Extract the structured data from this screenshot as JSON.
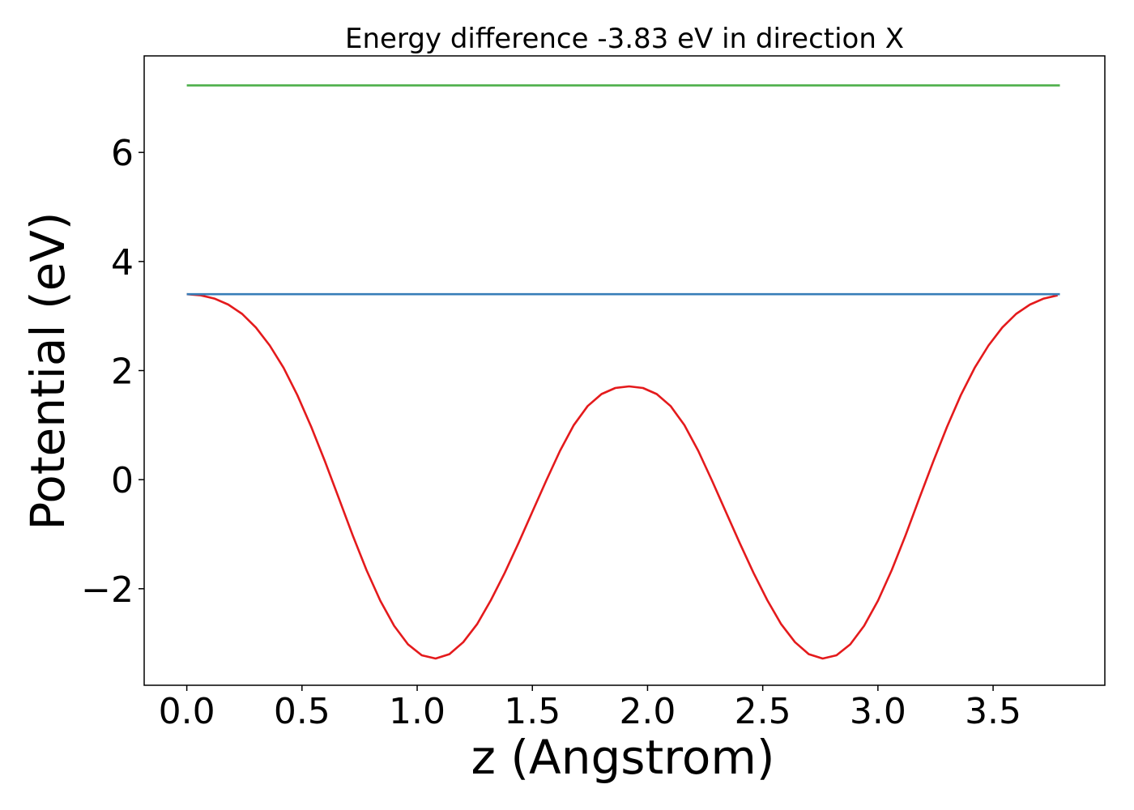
{
  "chart_data": {
    "type": "line",
    "title": "Energy difference -3.83 eV in direction X",
    "xlabel": "z (Angstrom)",
    "ylabel": "Potential (eV)",
    "xlim": [
      -0.185,
      3.985
    ],
    "ylim": [
      -3.77,
      7.77
    ],
    "xticks": [
      0.0,
      0.5,
      1.0,
      1.5,
      2.0,
      2.5,
      3.0,
      3.5
    ],
    "xtick_labels": [
      "0.0",
      "0.5",
      "1.0",
      "1.5",
      "2.0",
      "2.5",
      "3.0",
      "3.5"
    ],
    "yticks": [
      -2,
      0,
      2,
      4,
      6
    ],
    "ytick_labels": [
      "−2",
      "0",
      "2",
      "4",
      "6"
    ],
    "grid": false,
    "legend": "none",
    "series": [
      {
        "color": "#e41a1c",
        "x": [
          0.0,
          0.06,
          0.12,
          0.18,
          0.24,
          0.3,
          0.36,
          0.42,
          0.48,
          0.54,
          0.6,
          0.66,
          0.72,
          0.78,
          0.84,
          0.9,
          0.96,
          1.02,
          1.08,
          1.14,
          1.2,
          1.26,
          1.32,
          1.38,
          1.44,
          1.5,
          1.56,
          1.62,
          1.68,
          1.74,
          1.8,
          1.86,
          1.92,
          1.98,
          2.04,
          2.1,
          2.16,
          2.22,
          2.28,
          2.34,
          2.4,
          2.46,
          2.52,
          2.58,
          2.64,
          2.7,
          2.76,
          2.82,
          2.88,
          2.94,
          3.0,
          3.06,
          3.12,
          3.18,
          3.24,
          3.3,
          3.36,
          3.42,
          3.48,
          3.54,
          3.6,
          3.66,
          3.72,
          3.78
        ],
        "y": [
          3.4,
          3.38,
          3.32,
          3.21,
          3.04,
          2.79,
          2.46,
          2.05,
          1.55,
          0.97,
          0.33,
          -0.34,
          -1.02,
          -1.66,
          -2.22,
          -2.68,
          -3.02,
          -3.22,
          -3.28,
          -3.2,
          -2.98,
          -2.65,
          -2.21,
          -1.71,
          -1.16,
          -0.59,
          -0.02,
          0.53,
          1.0,
          1.35,
          1.57,
          1.68,
          1.71,
          1.68,
          1.57,
          1.35,
          1.0,
          0.53,
          -0.02,
          -0.59,
          -1.16,
          -1.71,
          -2.21,
          -2.65,
          -2.98,
          -3.2,
          -3.28,
          -3.22,
          -3.02,
          -2.68,
          -2.22,
          -1.66,
          -1.02,
          -0.34,
          0.33,
          0.97,
          1.55,
          2.05,
          2.46,
          2.79,
          3.04,
          3.21,
          3.32,
          3.38
        ]
      },
      {
        "color": "#377eb8",
        "x": [
          0.0,
          3.79
        ],
        "y": [
          3.4,
          3.4
        ]
      },
      {
        "color": "#4daf4a",
        "x": [
          0.0,
          3.79
        ],
        "y": [
          7.23,
          7.23
        ]
      }
    ]
  }
}
